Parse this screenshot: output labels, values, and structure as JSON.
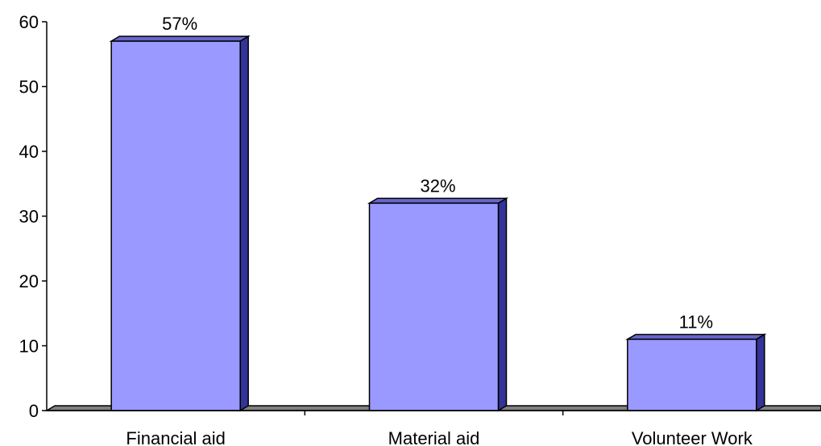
{
  "chart_data": {
    "type": "bar",
    "categories": [
      "Financial aid",
      "Material aid",
      "Volunteer Work"
    ],
    "values": [
      57,
      32,
      11
    ],
    "data_labels": [
      "57%",
      "32%",
      "11%"
    ],
    "ylim": [
      0,
      60
    ],
    "yticks": [
      0,
      10,
      20,
      30,
      40,
      50,
      60
    ],
    "ytick_labels": [
      "0",
      "10",
      "20",
      "30",
      "40",
      "50",
      "60"
    ],
    "title": "",
    "xlabel": "",
    "ylabel": "",
    "grid": false,
    "legend": false,
    "style": "3d",
    "colors": {
      "bar_front": "#9999ff",
      "bar_side": "#333399",
      "bar_top": "#6666cc",
      "floor": "#808080"
    }
  }
}
